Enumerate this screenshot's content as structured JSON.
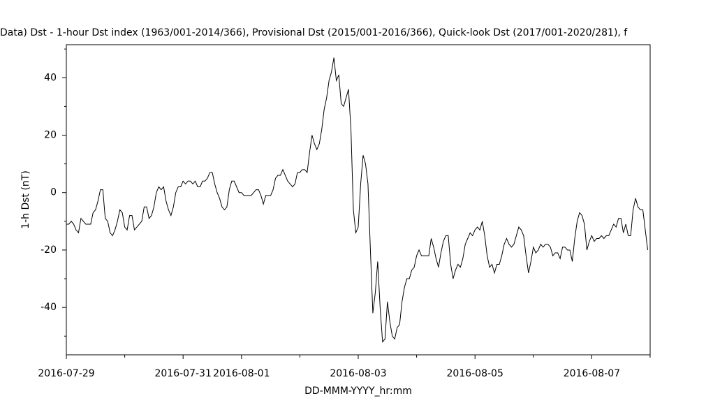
{
  "chart_data": {
    "type": "line",
    "title": "Data)  Dst - 1-hour Dst index (1963/001-2014/366), Provisional Dst (2015/001-2016/366), Quick-look Dst (2017/001-2020/281), f",
    "x_label": "DD-MMM-YYYY_hr:mm",
    "y_label": "1-h Dst (nT)",
    "xlim": [
      "2016-07-29",
      "2016-08-08"
    ],
    "xticks": [
      "2016-07-29",
      "2016-07-31",
      "2016-08-01",
      "2016-08-03",
      "2016-08-05",
      "2016-08-07"
    ],
    "xminorticks": [
      "2016-07-30",
      "2016-08-02",
      "2016-08-04",
      "2016-08-06",
      "2016-08-08"
    ],
    "ylim": [
      -56.5,
      51.5
    ],
    "yticks": [
      -40,
      -20,
      0,
      20,
      40
    ],
    "yminorticks": [
      -50,
      -30,
      -10,
      10,
      30,
      50
    ],
    "series": [
      {
        "color": "#000000",
        "values": [
          -11,
          -11,
          -10,
          -11,
          -13,
          -14,
          -9,
          -10,
          -11,
          -11,
          -11,
          -7,
          -6,
          -3,
          1,
          1,
          -9,
          -10,
          -14,
          -15,
          -13,
          -10,
          -6,
          -7,
          -12,
          -13,
          -8,
          -8,
          -13,
          -12,
          -11,
          -10,
          -5,
          -5,
          -9,
          -8,
          -5,
          0,
          2,
          1,
          2,
          -3,
          -6,
          -8,
          -5,
          0,
          2,
          2,
          4,
          3,
          4,
          4,
          3,
          4,
          2,
          2,
          4,
          4,
          5,
          7,
          7,
          3,
          0,
          -2,
          -5,
          -6,
          -5,
          1,
          4,
          4,
          2,
          0,
          0,
          -1,
          -1,
          -1,
          -1,
          0,
          1,
          1,
          -1,
          -4,
          -1,
          -1,
          -1,
          1,
          5,
          6,
          6,
          8,
          6,
          4,
          3,
          2,
          3,
          7,
          7,
          8,
          8,
          7,
          14,
          20,
          17,
          15,
          17,
          22,
          29,
          33,
          39,
          42,
          47,
          39,
          41,
          31,
          30,
          33,
          36,
          22,
          -6,
          -14,
          -12,
          3,
          13,
          10,
          3,
          -20,
          -42,
          -35,
          -24,
          -40,
          -52,
          -51,
          -38,
          -45,
          -50,
          -51,
          -47,
          -46,
          -38,
          -33,
          -30,
          -30,
          -27,
          -26,
          -22,
          -20,
          -22,
          -22,
          -22,
          -22,
          -16,
          -19,
          -23,
          -26,
          -21,
          -17,
          -15,
          -15,
          -25,
          -30,
          -27,
          -25,
          -26,
          -23,
          -18,
          -16,
          -14,
          -15,
          -13,
          -12,
          -13,
          -10,
          -15,
          -22,
          -26,
          -25,
          -28,
          -25,
          -25,
          -22,
          -18,
          -16,
          -18,
          -19,
          -18,
          -15,
          -12,
          -13,
          -15,
          -22,
          -28,
          -24,
          -19,
          -21,
          -20,
          -18,
          -19,
          -18,
          -18,
          -19,
          -22,
          -21,
          -21,
          -23,
          -19,
          -19,
          -20,
          -20,
          -24,
          -16,
          -10,
          -7,
          -8,
          -11,
          -20,
          -17,
          -15,
          -17,
          -16,
          -16,
          -15,
          -16,
          -15,
          -15,
          -13,
          -11,
          -12,
          -9,
          -9,
          -14,
          -11,
          -15,
          -15,
          -6,
          -2,
          -5,
          -6,
          -6,
          -13,
          -20
        ]
      }
    ]
  }
}
